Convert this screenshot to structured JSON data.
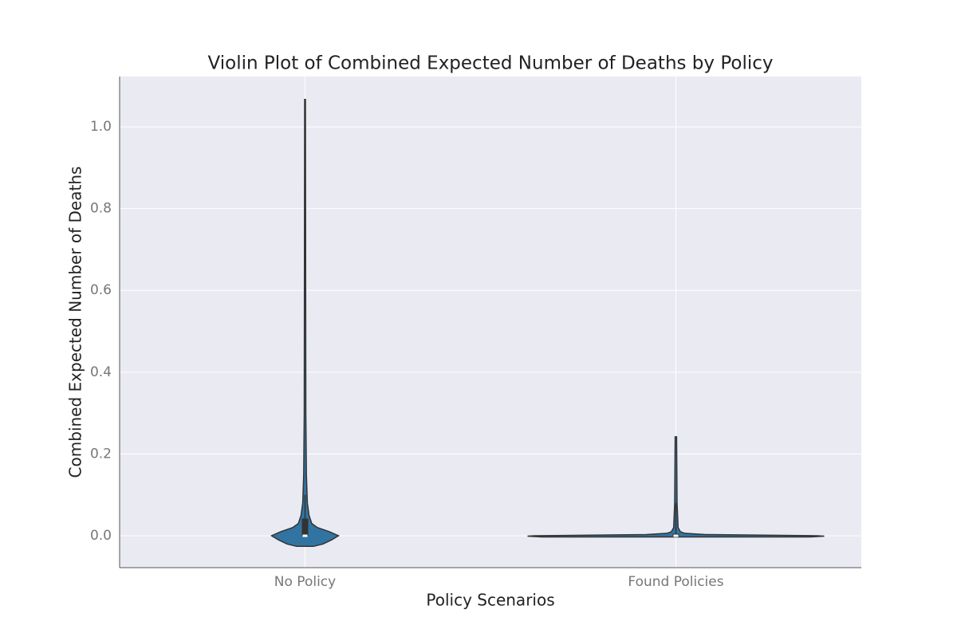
{
  "chart_data": {
    "type": "violin",
    "title": "Violin Plot of Combined Expected Number of Deaths by Policy",
    "x_label": "Policy Scenarios",
    "y_label": "Combined Expected Number of Deaths",
    "categories": [
      "No Policy",
      "Found Policies"
    ],
    "color": "#3274a1",
    "grid": true,
    "ylim": [
      -0.078,
      1.123
    ],
    "yticks": [
      {
        "value": 0,
        "label": "0.0"
      },
      0.2,
      0.4,
      0.6,
      0.8,
      {
        "value": 1,
        "label": "1.0"
      }
    ],
    "violins": [
      {
        "y": [
          -0.026,
          -0.02,
          -0.01,
          0.0,
          0.01,
          0.02,
          0.03,
          0.05,
          0.08,
          0.15,
          0.3,
          0.6,
          1.067
        ],
        "density": [
          0.25,
          0.54,
          0.8,
          1,
          0.73,
          0.37,
          0.2,
          0.12,
          0.07,
          0.04,
          0.025,
          0.02,
          0.012
        ],
        "max_width": 0.18,
        "q1": 0.0,
        "median": 0.0,
        "q3": 0.042,
        "whisker_low": -0.002,
        "whisker_high": 0.1
      },
      {
        "y": [
          -0.003,
          -0.001,
          0.0,
          0.003,
          0.006,
          0.01,
          0.02,
          0.08,
          0.242
        ],
        "density": [
          0.9,
          1,
          0.95,
          0.2,
          0.06,
          0.03,
          0.015,
          0.008,
          0.005
        ],
        "max_width": 0.8,
        "q1": 0.0,
        "median": 0.0,
        "q3": 0.005,
        "whisker_low": -0.001,
        "whisker_high": 0.08
      }
    ]
  }
}
